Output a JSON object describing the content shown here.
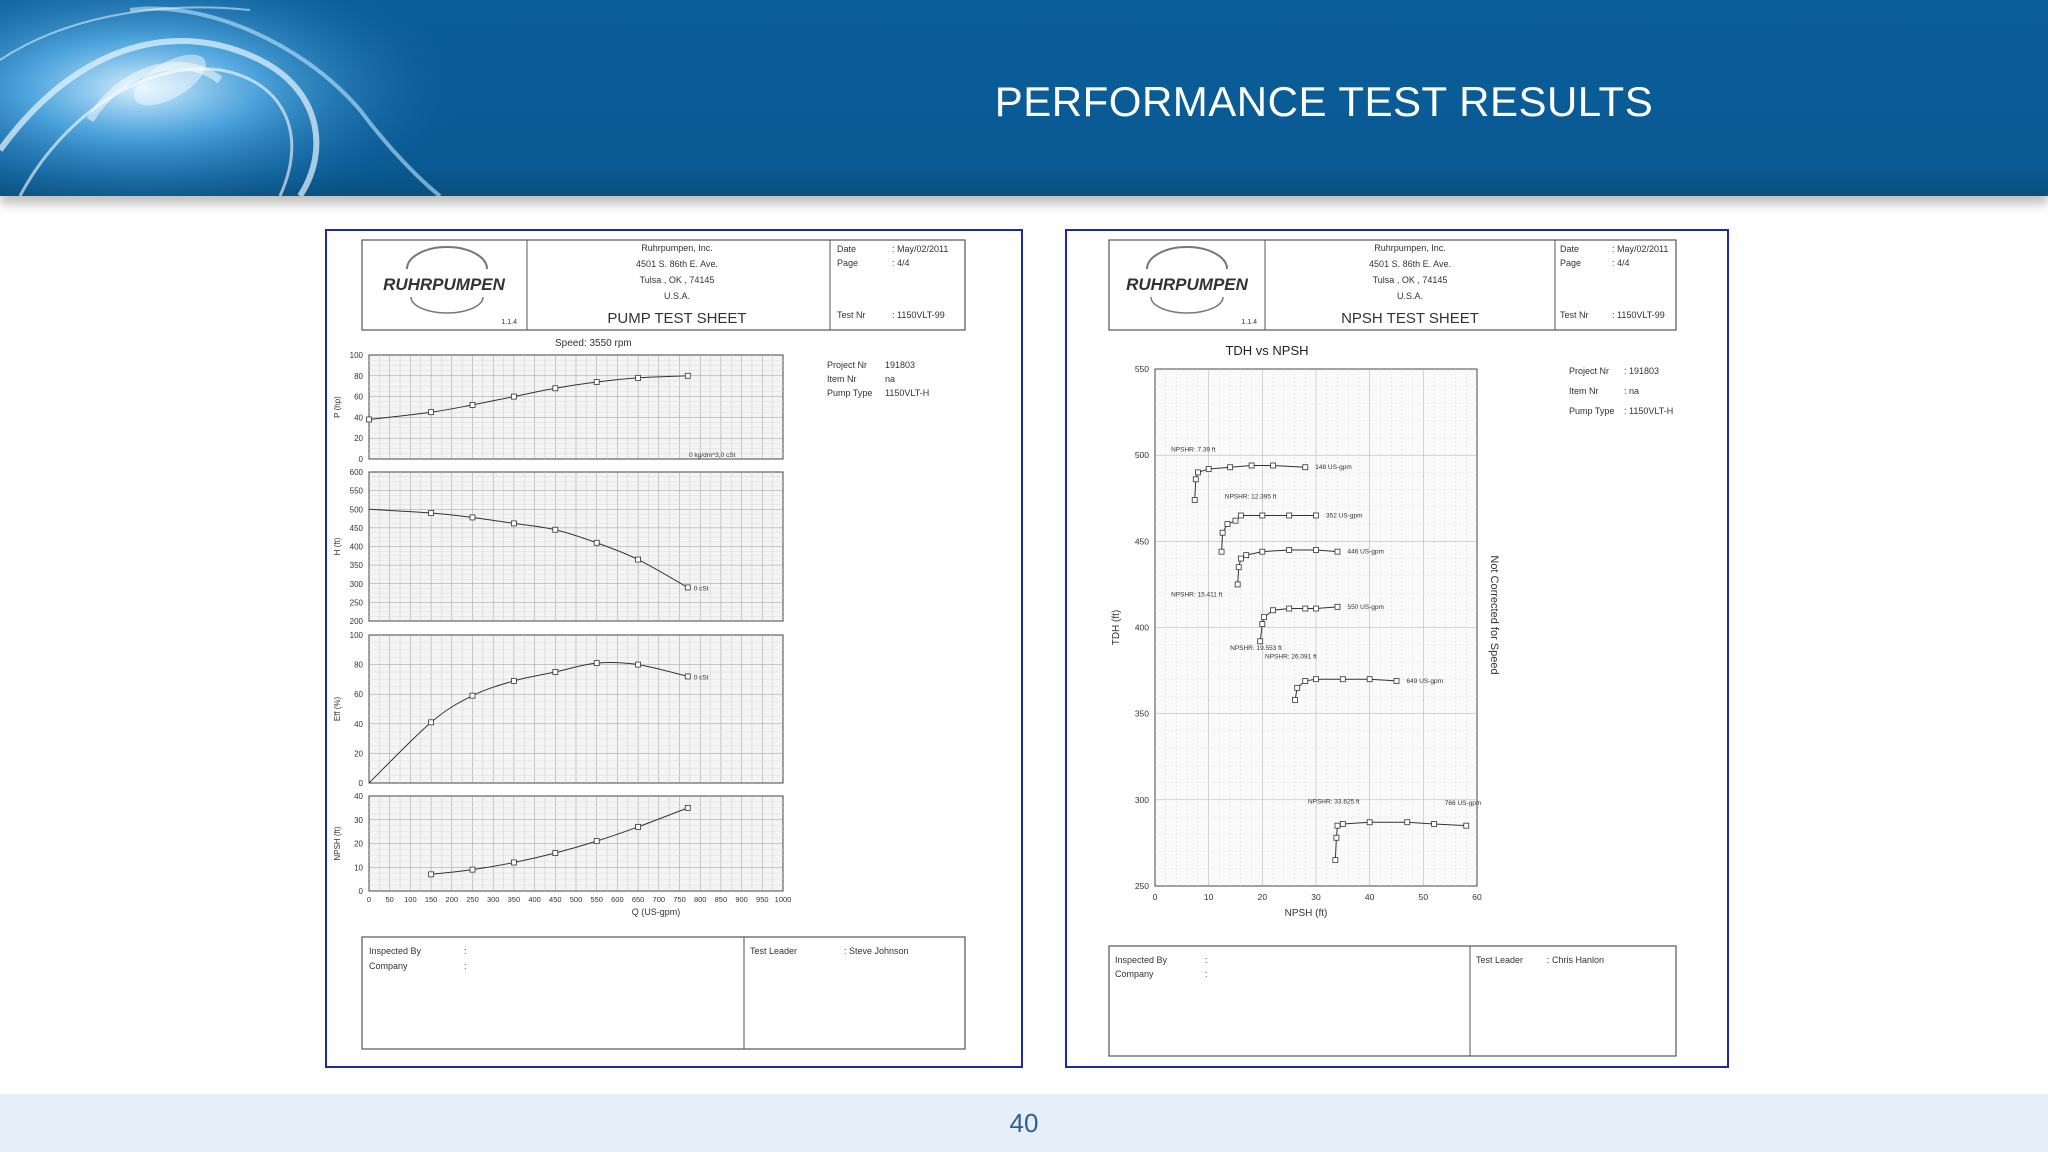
{
  "slide": {
    "title": "PERFORMANCE TEST RESULTS",
    "page_number": "40",
    "colors": {
      "banner": "#0a5e9a",
      "footer": "#e6eef9",
      "frame": "#1f2aa0"
    }
  },
  "sheets": [
    {
      "logo": "RUHRPUMPEN",
      "company": [
        "Ruhrpumpen, Inc.",
        "4501 S. 86th E. Ave.",
        "Tulsa , OK , 74145",
        "U.S.A."
      ],
      "form_code": "1.1.4",
      "sheet_title": "PUMP TEST SHEET",
      "date_label": "Date",
      "date_value": ": May/02/2011",
      "page_label": "Page",
      "page_value": ": 4/4",
      "test_label": "Test Nr",
      "test_value": ": 1150VLT-99",
      "speed": "Speed: 3550 rpm",
      "project_label": "Project Nr",
      "project_value": "191803",
      "item_label": "Item Nr",
      "item_value": "na",
      "pumptype_label": "Pump Type",
      "pumptype_value": "1150VLT-H",
      "inspected_label": "Inspected By",
      "company_label": "Company",
      "colon": ":",
      "leader_label": "Test Leader",
      "leader_value": ": Steve Johnson"
    },
    {
      "logo": "RUHRPUMPEN",
      "company": [
        "Ruhrpumpen, Inc.",
        "4501 S. 86th E. Ave.",
        "Tulsa , OK , 74145",
        "U.S.A."
      ],
      "form_code": "1.1.4",
      "sheet_title": "NPSH TEST SHEET",
      "date_label": "Date",
      "date_value": ": May/02/2011",
      "page_label": "Page",
      "page_value": ": 4/4",
      "test_label": "Test Nr",
      "test_value": ": 1150VLT-99",
      "project_label": "Project Nr",
      "project_value": ": 191803",
      "item_label": "Item Nr",
      "item_value": ": na",
      "pumptype_label": "Pump Type",
      "pumptype_value": ": 1150VLT-H",
      "inspected_label": "Inspected By",
      "company_label": "Company",
      "colon": ":",
      "leader_label": "Test Leader",
      "leader_value": ": Chris Hanlon",
      "side_note": "Not Corrected for Speed"
    }
  ],
  "chart_data": [
    {
      "type": "line",
      "ylabel": "P (hp)",
      "ylim": [
        0,
        100
      ],
      "yticks": [
        "0",
        "20",
        "40",
        "60",
        "80",
        "100"
      ],
      "xlim": [
        0,
        1000
      ],
      "annotation": "0 kg/dm^3,0 cSt",
      "series": [
        {
          "x": [
            0,
            150,
            250,
            350,
            450,
            550,
            650,
            770
          ],
          "y": [
            38,
            45,
            52,
            60,
            68,
            74,
            78,
            80
          ]
        }
      ]
    },
    {
      "type": "line",
      "ylabel": "H (ft)",
      "ylim": [
        200,
        600
      ],
      "yticks": [
        "200",
        "250",
        "300",
        "350",
        "400",
        "450",
        "500",
        "550",
        "600"
      ],
      "xlim": [
        0,
        1000
      ],
      "annotation": "0 cSt",
      "series": [
        {
          "x": [
            0,
            150,
            250,
            350,
            450,
            550,
            650,
            770
          ],
          "y": [
            500,
            490,
            478,
            462,
            445,
            410,
            365,
            290
          ]
        }
      ]
    },
    {
      "type": "line",
      "ylabel": "Eff (%)",
      "ylim": [
        0,
        100
      ],
      "yticks": [
        "0",
        "20",
        "40",
        "60",
        "80",
        "100"
      ],
      "xlim": [
        0,
        1000
      ],
      "annotation": "0 cSt",
      "series": [
        {
          "x": [
            0,
            150,
            250,
            350,
            450,
            550,
            650,
            770
          ],
          "y": [
            0,
            41,
            59,
            69,
            75,
            81,
            80,
            72
          ]
        }
      ]
    },
    {
      "type": "line",
      "ylabel": "NPSH (ft)",
      "xlabel": "Q (US-gpm)",
      "ylim": [
        0,
        40
      ],
      "yticks": [
        "0",
        "10",
        "20",
        "30",
        "40"
      ],
      "xlim": [
        0,
        1000
      ],
      "xticks": [
        "0",
        "50",
        "100",
        "150",
        "200",
        "250",
        "300",
        "350",
        "400",
        "450",
        "500",
        "550",
        "600",
        "650",
        "700",
        "750",
        "800",
        "850",
        "900",
        "950",
        "1000"
      ],
      "series": [
        {
          "x": [
            150,
            250,
            350,
            450,
            550,
            650,
            770
          ],
          "y": [
            7,
            9,
            12,
            16,
            21,
            27,
            35
          ]
        }
      ]
    },
    {
      "type": "line",
      "title": "TDH vs NPSH",
      "xlabel": "NPSH (ft)",
      "ylabel": "TDH (ft)",
      "xlim": [
        0,
        60
      ],
      "ylim": [
        250,
        550
      ],
      "xticks": [
        "0",
        "10",
        "20",
        "30",
        "40",
        "50",
        "60"
      ],
      "yticks": [
        "250",
        "300",
        "350",
        "400",
        "450",
        "500",
        "550"
      ],
      "series": [
        {
          "name": "148 US-gpm",
          "npshr": "NPSHR: 7.39 ft",
          "x": [
            7.4,
            7.6,
            8,
            10,
            14,
            18,
            22,
            28
          ],
          "y": [
            474,
            486,
            490,
            492,
            493,
            494,
            494,
            493
          ]
        },
        {
          "name": "352 US-gpm",
          "npshr": "NPSHR: 12.395 ft",
          "x": [
            12.4,
            12.6,
            13.5,
            15,
            16,
            20,
            25,
            30
          ],
          "y": [
            444,
            455,
            460,
            462,
            465,
            465,
            465,
            465
          ]
        },
        {
          "name": "446 US-gpm",
          "npshr": "NPSHR: 15.411 ft",
          "x": [
            15.4,
            15.6,
            16,
            17,
            20,
            25,
            30,
            34
          ],
          "y": [
            425,
            435,
            440,
            442,
            444,
            445,
            445,
            444
          ]
        },
        {
          "name": "550 US-gpm",
          "npshr": "NPSHR: 19.553 ft",
          "x": [
            19.6,
            20,
            20.3,
            22,
            25,
            28,
            30,
            34
          ],
          "y": [
            392,
            402,
            406,
            410,
            411,
            411,
            411,
            412
          ]
        },
        {
          "name": "649 US-gpm",
          "npshr": "NPSHR: 26.091 ft",
          "x": [
            26.1,
            26.5,
            28,
            30,
            35,
            40,
            45
          ],
          "y": [
            358,
            365,
            369,
            370,
            370,
            370,
            369
          ]
        },
        {
          "name": "766 US-gpm",
          "npshr": "NPSHR: 33.625 ft",
          "x": [
            33.6,
            33.8,
            34,
            35,
            40,
            47,
            52,
            58
          ],
          "y": [
            265,
            278,
            285,
            286,
            287,
            287,
            286,
            285
          ]
        }
      ]
    }
  ]
}
